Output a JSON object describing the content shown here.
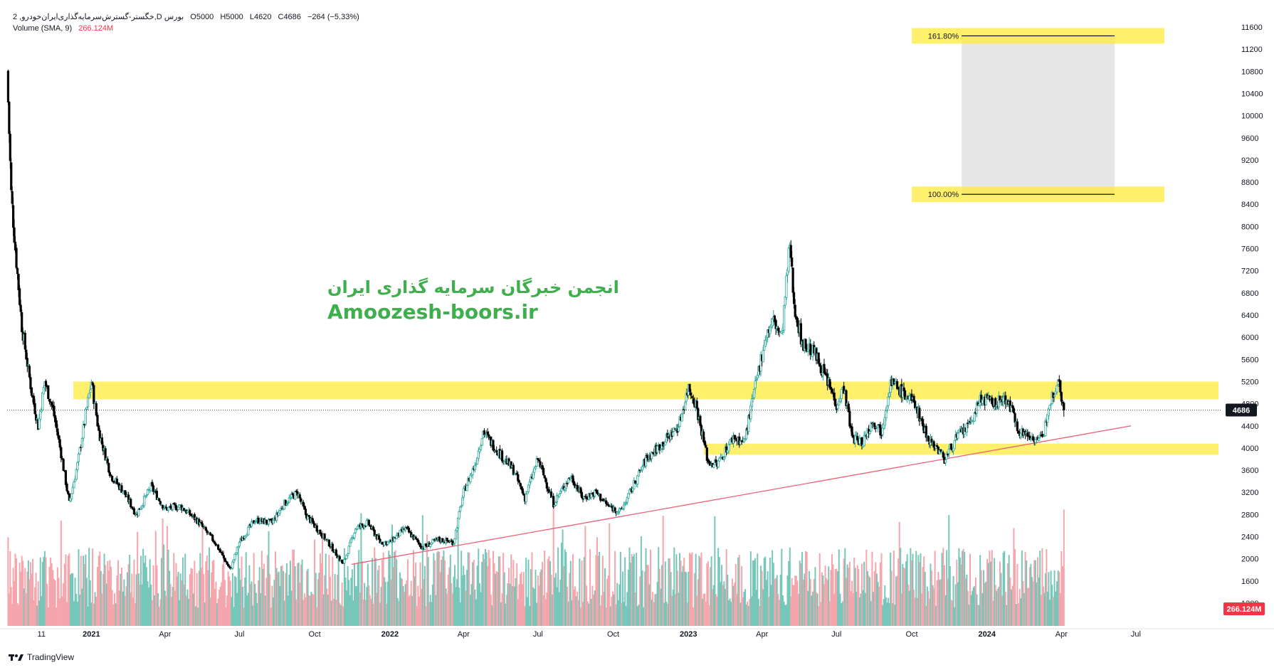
{
  "legend": {
    "symbol_line": "2 ,خگستر-گسترش‌سرمایه‌گذاری‌ایران‌خودرو,D بورس",
    "open": "O5000",
    "high": "H5000",
    "low": "L4620",
    "close": "C4686",
    "change": "−264 (−5.33%)",
    "volume_label": "Volume (SMA, 9)",
    "volume_value": "266.124M"
  },
  "watermark": {
    "farsi": "انجمن خبرگان سرمایه گذاری ایران",
    "site": "Amoozesh-boors.ir"
  },
  "branding": {
    "text": "TradingView"
  },
  "colors": {
    "up": "#26a69a",
    "down": "#000000",
    "vol_up": "#76c7b9",
    "vol_down": "#f4a6ac",
    "zone": "#ffeb3b",
    "trendline": "#f06073",
    "fib_fill": "#e3e3e3"
  },
  "chart_data": {
    "type": "candlestick",
    "y_axis": {
      "ticks": [
        11600,
        11200,
        10800,
        10400,
        10000,
        9600,
        9200,
        8800,
        8400,
        8000,
        7600,
        7200,
        6800,
        6400,
        6000,
        5600,
        5200,
        4800,
        4400,
        4000,
        3600,
        3200,
        2800,
        2400,
        2000,
        1600,
        1200
      ],
      "range": [
        1200,
        11600
      ],
      "last_price_label": "4686",
      "last_price": 4686,
      "volume_label": "266.124M"
    },
    "x_axis": {
      "ticks": [
        {
          "label": "11",
          "date": "2020-11-01"
        },
        {
          "label": "2021",
          "date": "2021-01-01"
        },
        {
          "label": "Apr",
          "date": "2021-04-01"
        },
        {
          "label": "Jul",
          "date": "2021-07-01"
        },
        {
          "label": "Oct",
          "date": "2021-10-01"
        },
        {
          "label": "2022",
          "date": "2022-01-01"
        },
        {
          "label": "Apr",
          "date": "2022-04-01"
        },
        {
          "label": "Jul",
          "date": "2022-07-01"
        },
        {
          "label": "Oct",
          "date": "2022-10-01"
        },
        {
          "label": "2023",
          "date": "2023-01-01"
        },
        {
          "label": "Apr",
          "date": "2023-04-01"
        },
        {
          "label": "Jul",
          "date": "2023-07-01"
        },
        {
          "label": "Oct",
          "date": "2023-10-01"
        },
        {
          "label": "2024",
          "date": "2024-01-01"
        },
        {
          "label": "Apr",
          "date": "2024-04-01"
        },
        {
          "label": "Jul",
          "date": "2024-07-01"
        }
      ],
      "range": [
        "2020-09-20",
        "2024-10-10"
      ]
    },
    "price_path": [
      {
        "date": "2020-09-20",
        "close": 10800
      },
      {
        "date": "2020-09-25",
        "close": 8600
      },
      {
        "date": "2020-09-30",
        "close": 7600
      },
      {
        "date": "2020-10-08",
        "close": 6200
      },
      {
        "date": "2020-10-20",
        "close": 5000
      },
      {
        "date": "2020-10-28",
        "close": 4400
      },
      {
        "date": "2020-11-05",
        "close": 5200
      },
      {
        "date": "2020-11-15",
        "close": 4700
      },
      {
        "date": "2020-11-25",
        "close": 3900
      },
      {
        "date": "2020-12-05",
        "close": 3000
      },
      {
        "date": "2020-12-15",
        "close": 3700
      },
      {
        "date": "2020-12-25",
        "close": 4600
      },
      {
        "date": "2021-01-01",
        "close": 5200
      },
      {
        "date": "2021-01-10",
        "close": 4300
      },
      {
        "date": "2021-01-25",
        "close": 3500
      },
      {
        "date": "2021-02-10",
        "close": 3200
      },
      {
        "date": "2021-02-25",
        "close": 2800
      },
      {
        "date": "2021-03-15",
        "close": 3300
      },
      {
        "date": "2021-04-01",
        "close": 2900
      },
      {
        "date": "2021-04-20",
        "close": 2950
      },
      {
        "date": "2021-05-10",
        "close": 2700
      },
      {
        "date": "2021-06-01",
        "close": 2300
      },
      {
        "date": "2021-06-20",
        "close": 1800
      },
      {
        "date": "2021-07-01",
        "close": 2300
      },
      {
        "date": "2021-07-20",
        "close": 2700
      },
      {
        "date": "2021-08-10",
        "close": 2650
      },
      {
        "date": "2021-08-25",
        "close": 3000
      },
      {
        "date": "2021-09-10",
        "close": 3200
      },
      {
        "date": "2021-09-20",
        "close": 2800
      },
      {
        "date": "2021-10-01",
        "close": 2600
      },
      {
        "date": "2021-10-20",
        "close": 2250
      },
      {
        "date": "2021-11-05",
        "close": 1900
      },
      {
        "date": "2021-11-20",
        "close": 2550
      },
      {
        "date": "2021-12-05",
        "close": 2650
      },
      {
        "date": "2021-12-20",
        "close": 2300
      },
      {
        "date": "2022-01-01",
        "close": 2300
      },
      {
        "date": "2022-01-20",
        "close": 2550
      },
      {
        "date": "2022-02-10",
        "close": 2200
      },
      {
        "date": "2022-03-01",
        "close": 2350
      },
      {
        "date": "2022-03-20",
        "close": 2300
      },
      {
        "date": "2022-04-01",
        "close": 3200
      },
      {
        "date": "2022-04-15",
        "close": 3700
      },
      {
        "date": "2022-04-25",
        "close": 4300
      },
      {
        "date": "2022-05-10",
        "close": 4000
      },
      {
        "date": "2022-06-01",
        "close": 3600
      },
      {
        "date": "2022-06-15",
        "close": 3100
      },
      {
        "date": "2022-07-01",
        "close": 3800
      },
      {
        "date": "2022-07-20",
        "close": 3000
      },
      {
        "date": "2022-08-10",
        "close": 3500
      },
      {
        "date": "2022-08-25",
        "close": 3100
      },
      {
        "date": "2022-09-10",
        "close": 3200
      },
      {
        "date": "2022-09-25",
        "close": 2950
      },
      {
        "date": "2022-10-10",
        "close": 2850
      },
      {
        "date": "2022-10-25",
        "close": 3300
      },
      {
        "date": "2022-11-10",
        "close": 3800
      },
      {
        "date": "2022-12-01",
        "close": 4100
      },
      {
        "date": "2022-12-20",
        "close": 4400
      },
      {
        "date": "2023-01-01",
        "close": 5100
      },
      {
        "date": "2023-01-10",
        "close": 4800
      },
      {
        "date": "2023-01-25",
        "close": 3750
      },
      {
        "date": "2023-02-05",
        "close": 3700
      },
      {
        "date": "2023-02-25",
        "close": 4200
      },
      {
        "date": "2023-03-10",
        "close": 4100
      },
      {
        "date": "2023-03-25",
        "close": 5200
      },
      {
        "date": "2023-04-05",
        "close": 6000
      },
      {
        "date": "2023-04-15",
        "close": 6300
      },
      {
        "date": "2023-04-25",
        "close": 6000
      },
      {
        "date": "2023-05-05",
        "close": 7700
      },
      {
        "date": "2023-05-10",
        "close": 6600
      },
      {
        "date": "2023-05-20",
        "close": 5900
      },
      {
        "date": "2023-06-05",
        "close": 5700
      },
      {
        "date": "2023-06-20",
        "close": 5200
      },
      {
        "date": "2023-07-01",
        "close": 4800
      },
      {
        "date": "2023-07-10",
        "close": 5100
      },
      {
        "date": "2023-07-20",
        "close": 4200
      },
      {
        "date": "2023-08-01",
        "close": 4100
      },
      {
        "date": "2023-08-15",
        "close": 4500
      },
      {
        "date": "2023-08-25",
        "close": 4300
      },
      {
        "date": "2023-09-05",
        "close": 5200
      },
      {
        "date": "2023-09-20",
        "close": 5000
      },
      {
        "date": "2023-10-05",
        "close": 4800
      },
      {
        "date": "2023-10-20",
        "close": 4200
      },
      {
        "date": "2023-11-01",
        "close": 4000
      },
      {
        "date": "2023-11-10",
        "close": 3800
      },
      {
        "date": "2023-11-25",
        "close": 4200
      },
      {
        "date": "2023-12-10",
        "close": 4400
      },
      {
        "date": "2023-12-25",
        "close": 4900
      },
      {
        "date": "2024-01-10",
        "close": 4800
      },
      {
        "date": "2024-01-25",
        "close": 4900
      },
      {
        "date": "2024-02-10",
        "close": 4300
      },
      {
        "date": "2024-02-25",
        "close": 4200
      },
      {
        "date": "2024-03-10",
        "close": 4150
      },
      {
        "date": "2024-03-15",
        "close": 4700
      },
      {
        "date": "2024-03-22",
        "close": 5000
      },
      {
        "date": "2024-03-28",
        "close": 5250
      },
      {
        "date": "2024-04-01",
        "close": 4950
      },
      {
        "date": "2024-04-04",
        "close": 4686
      }
    ],
    "zones": [
      {
        "low": 4880,
        "high": 5200,
        "from": "2020-12-10",
        "to": "2024-10-10"
      },
      {
        "low": 3880,
        "high": 4080,
        "from": "2023-01-20",
        "to": "2024-10-10"
      }
    ],
    "fibonacci": [
      {
        "label": "161.80%",
        "value": 11440
      },
      {
        "label": "100.00%",
        "value": 8580
      }
    ],
    "fib_range": {
      "from": "2023-12-01",
      "to": "2024-06-05"
    },
    "trendline": [
      {
        "date": "2021-11-15",
        "value": 1900
      },
      {
        "date": "2024-06-25",
        "value": 4400
      }
    ]
  }
}
